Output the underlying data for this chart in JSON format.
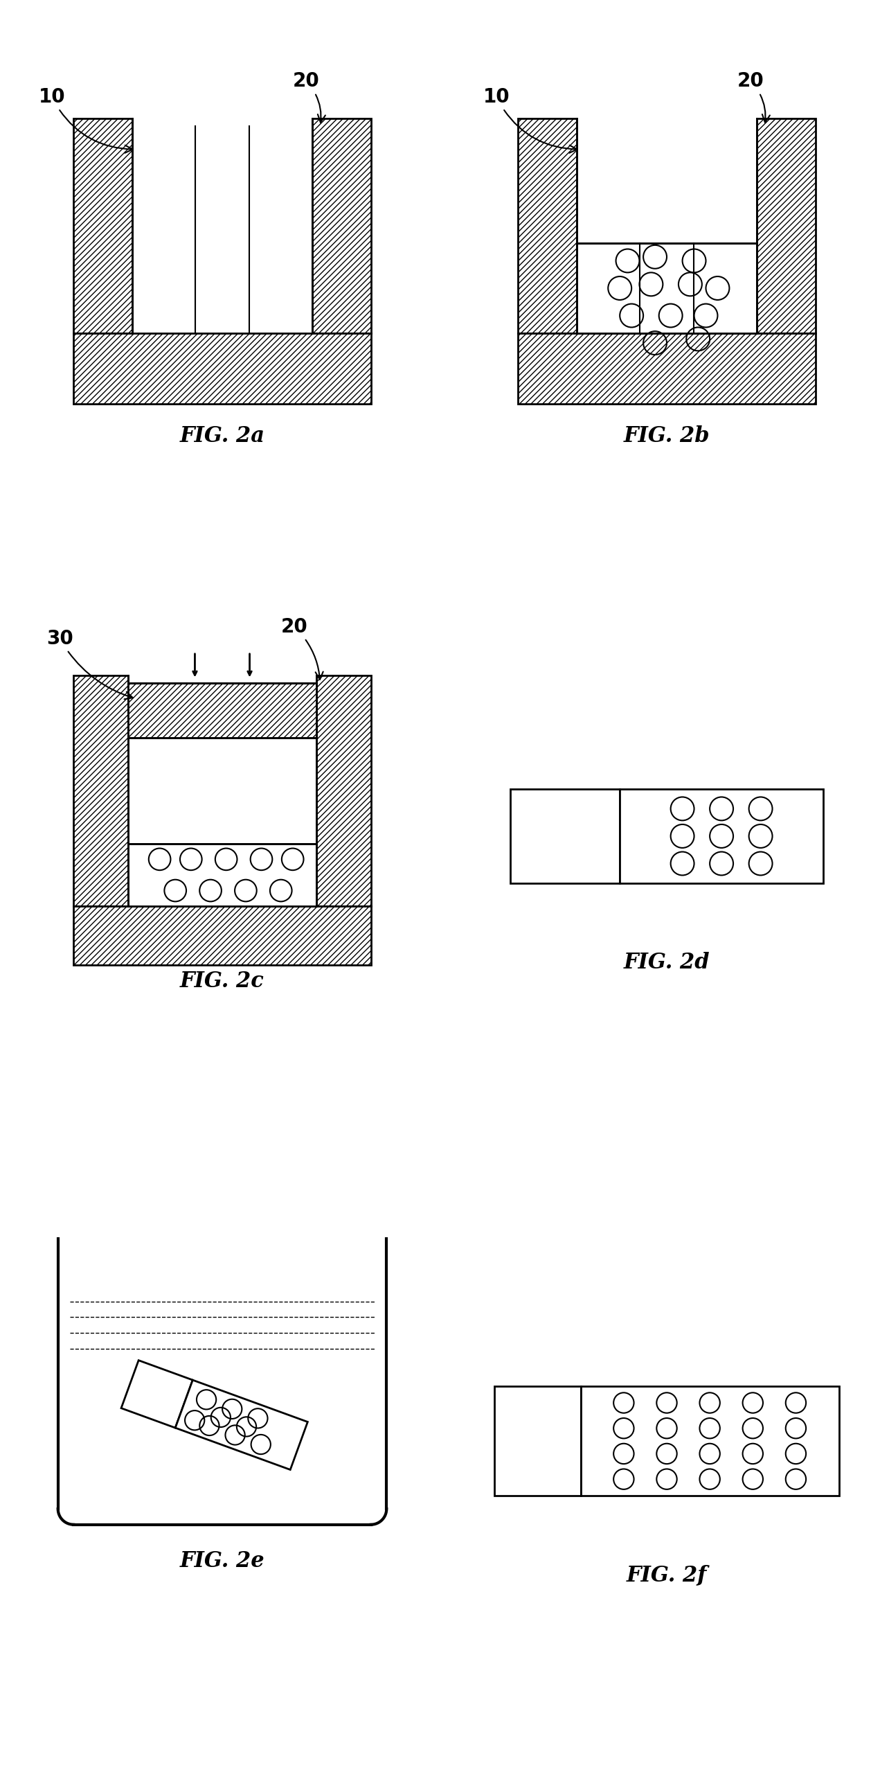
{
  "fig_labels": [
    "FIG. 2a",
    "FIG. 2b",
    "FIG. 2c",
    "FIG. 2d",
    "FIG. 2e",
    "FIG. 2f"
  ],
  "background_color": "#ffffff",
  "line_color": "#000000",
  "hatch_color": "#000000",
  "label_fontsize": 22,
  "annotation_fontsize": 20,
  "lw": 2.0
}
